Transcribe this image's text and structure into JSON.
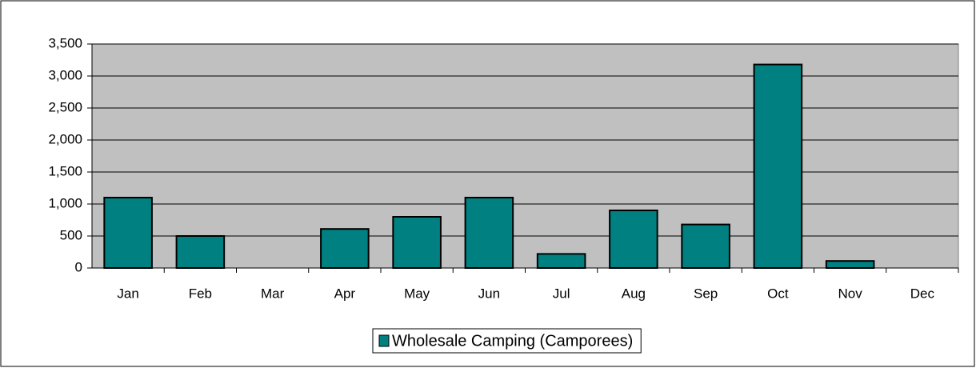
{
  "chart_data": {
    "type": "bar",
    "categories": [
      "Jan",
      "Feb",
      "Mar",
      "Apr",
      "May",
      "Jun",
      "Jul",
      "Aug",
      "Sep",
      "Oct",
      "Nov",
      "Dec"
    ],
    "series": [
      {
        "name": "Wholesale Camping (Camporees)",
        "color": "#008080",
        "values": [
          1100,
          500,
          0,
          610,
          800,
          1100,
          220,
          900,
          680,
          3180,
          110,
          0
        ]
      }
    ],
    "ylim": [
      0,
      3500
    ],
    "yticks": [
      0,
      500,
      {
        "value": 1000,
        "label": "1,000"
      },
      {
        "value": 1500,
        "label": "1,500"
      },
      {
        "value": 2000,
        "label": "2,000"
      },
      {
        "value": 2500,
        "label": "2,500"
      },
      {
        "value": 3000,
        "label": "3,000"
      },
      {
        "value": 3500,
        "label": "3,500"
      }
    ],
    "grid": true,
    "plot_background": "#c0c0c0",
    "legend": "bottom"
  }
}
